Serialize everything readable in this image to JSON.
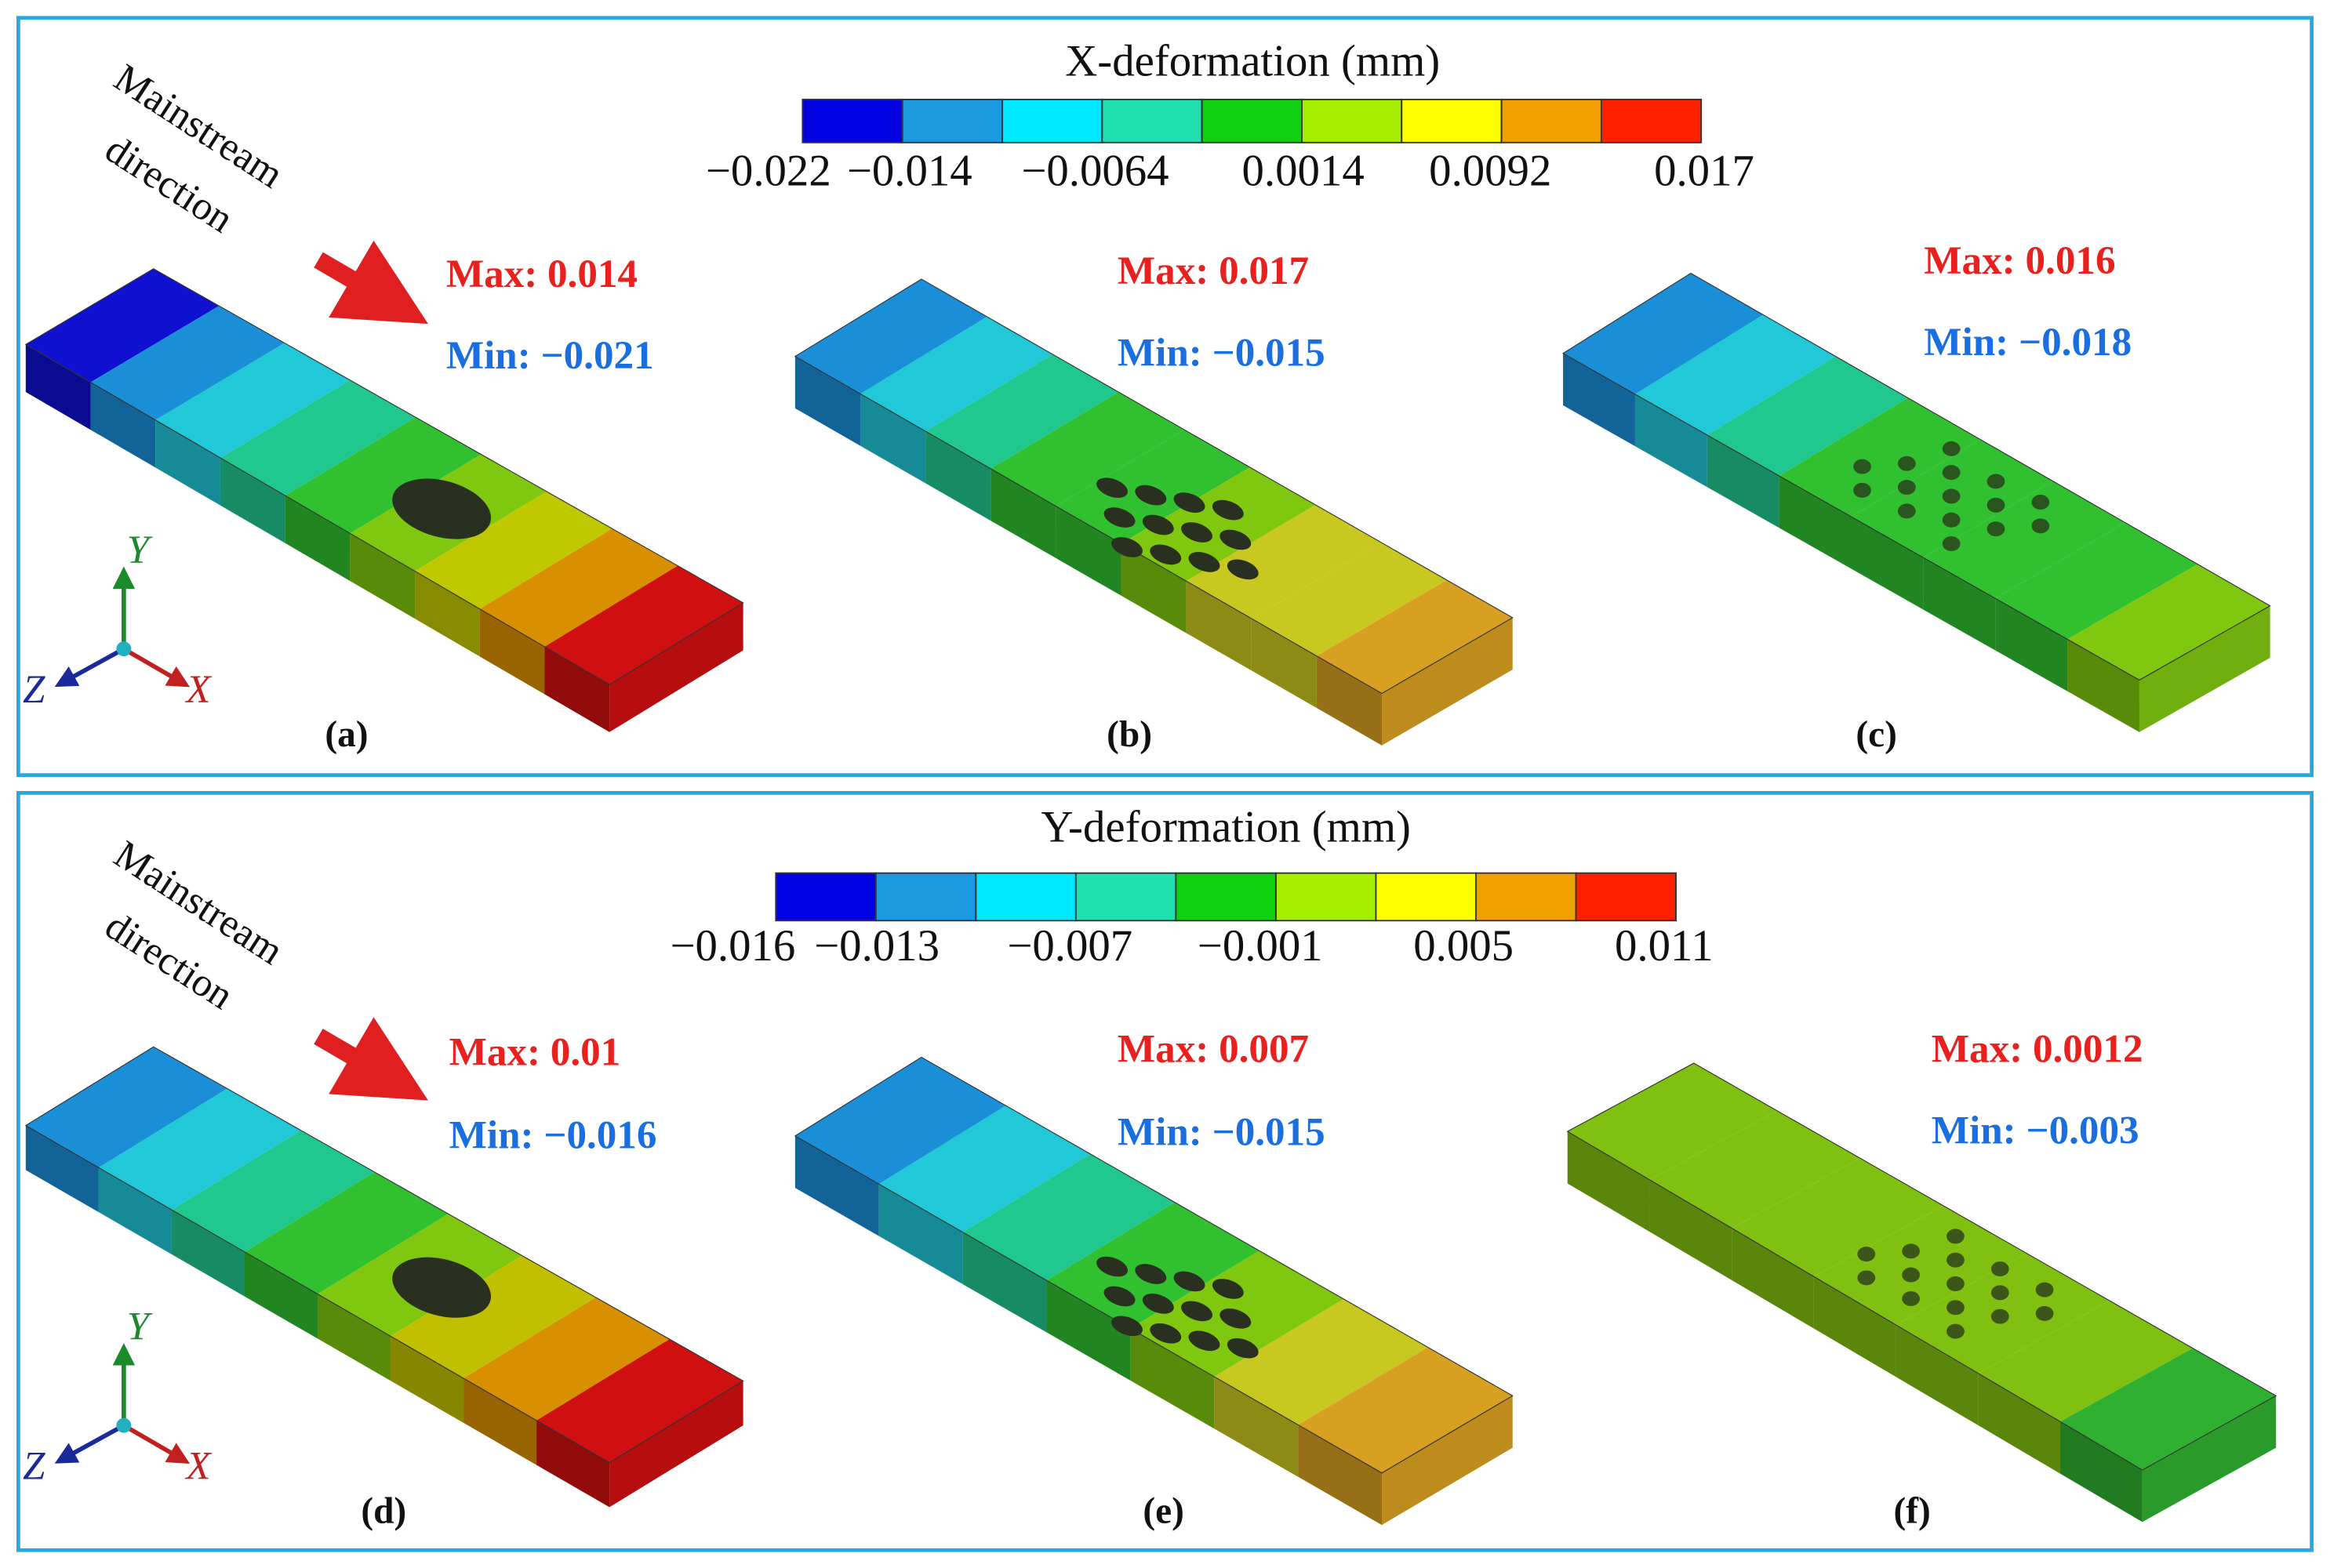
{
  "panels": [
    {
      "colorbar": {
        "title": "X-deformation (mm)",
        "ticks": [
          "−0.022",
          "−0.014",
          "−0.0064",
          "0.0014",
          "0.0092",
          "0.017"
        ]
      },
      "direction_label": [
        "Mainstream",
        "direction"
      ],
      "axes": {
        "y": "Y",
        "x": "X",
        "z": "Z"
      },
      "cases": [
        {
          "max": "Max: 0.014",
          "min": "Min: −0.021",
          "label": "(a)"
        },
        {
          "max": "Max: 0.017",
          "min": "Min: −0.015",
          "label": "(b)"
        },
        {
          "max": "Max: 0.016",
          "min": "Min: −0.018",
          "label": "(c)"
        }
      ]
    },
    {
      "colorbar": {
        "title": "Y-deformation (mm)",
        "ticks": [
          "−0.016",
          "−0.013",
          "−0.007",
          "−0.001",
          "0.005",
          "0.011"
        ]
      },
      "direction_label": [
        "Mainstream",
        "direction"
      ],
      "axes": {
        "y": "Y",
        "x": "X",
        "z": "Z"
      },
      "cases": [
        {
          "max": "Max: 0.01",
          "min": "Min: −0.016",
          "label": "(d)"
        },
        {
          "max": "Max: 0.007",
          "min": "Min: −0.015",
          "label": "(e)"
        },
        {
          "max": "Max: 0.0012",
          "min": "Min: −0.003",
          "label": "(f)"
        }
      ]
    }
  ]
}
